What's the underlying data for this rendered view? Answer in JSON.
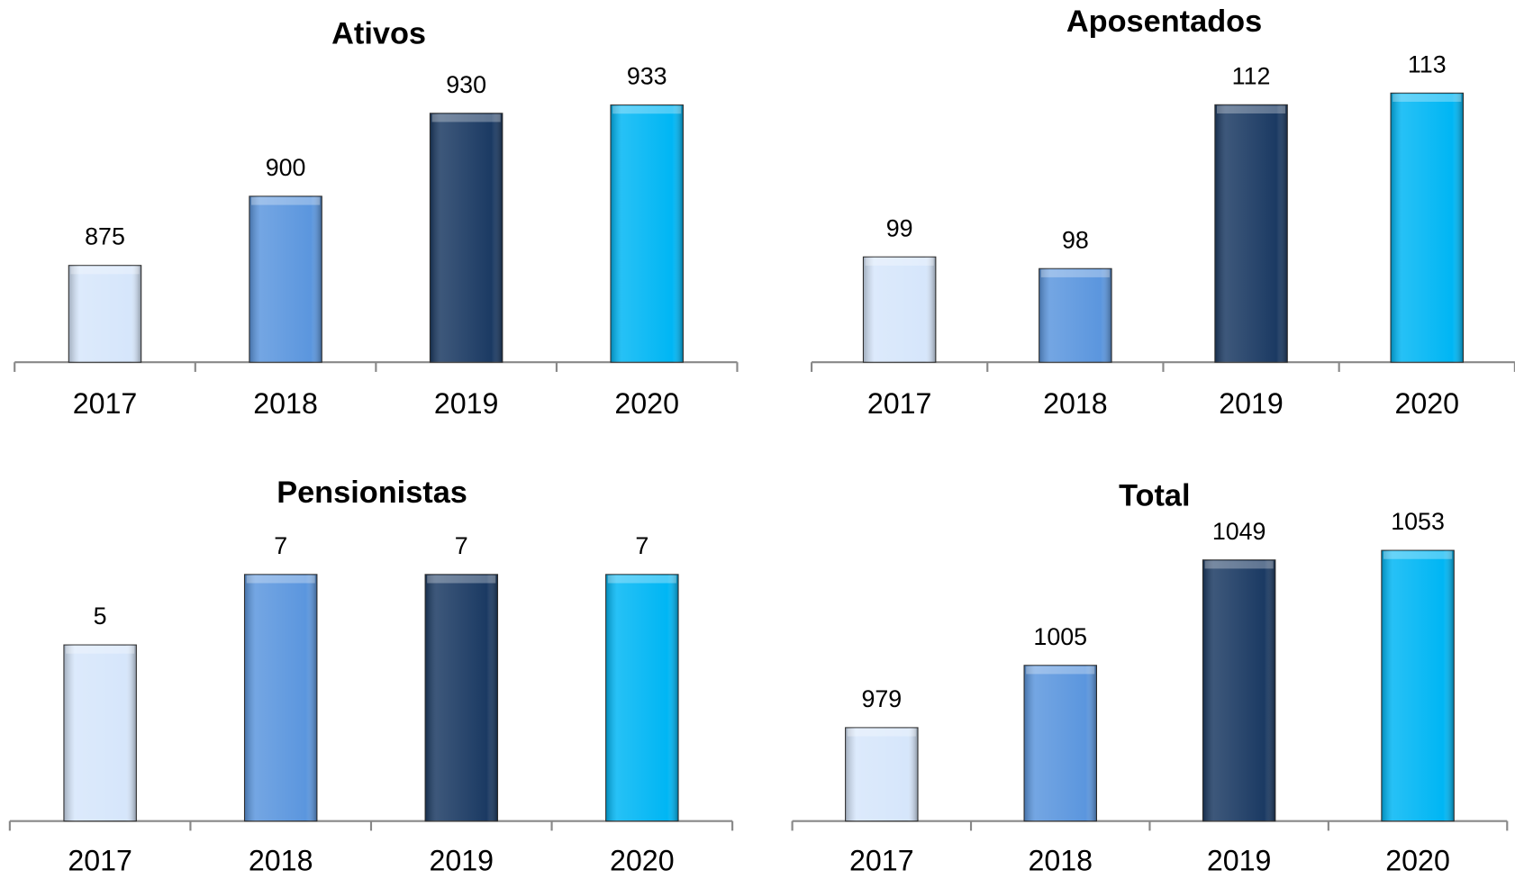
{
  "chart_data": [
    {
      "type": "bar",
      "title": "Ativos",
      "categories": [
        "2017",
        "2018",
        "2019",
        "2020"
      ],
      "values": [
        875,
        900,
        930,
        933
      ],
      "colors": [
        "#d6e6fb",
        "#5b96de",
        "#1b3a63",
        "#00b6f4"
      ],
      "ylim": [
        840,
        950
      ]
    },
    {
      "type": "bar",
      "title": "Aposentados",
      "categories": [
        "2017",
        "2018",
        "2019",
        "2020"
      ],
      "values": [
        99,
        98,
        112,
        113
      ],
      "colors": [
        "#d6e6fb",
        "#5b96de",
        "#1b3a63",
        "#00b6f4"
      ],
      "ylim": [
        90,
        116
      ]
    },
    {
      "type": "bar",
      "title": "Pensionistas",
      "categories": [
        "2017",
        "2018",
        "2019",
        "2020"
      ],
      "values": [
        5,
        7,
        7,
        7
      ],
      "colors": [
        "#d6e6fb",
        "#5b96de",
        "#1b3a63",
        "#00b6f4"
      ],
      "ylim": [
        0,
        8.5
      ]
    },
    {
      "type": "bar",
      "title": "Total",
      "categories": [
        "2017",
        "2018",
        "2019",
        "2020"
      ],
      "values": [
        979,
        1005,
        1049,
        1053
      ],
      "colors": [
        "#d6e6fb",
        "#5b96de",
        "#1b3a63",
        "#00b6f4"
      ],
      "ylim": [
        940,
        1065
      ]
    }
  ]
}
